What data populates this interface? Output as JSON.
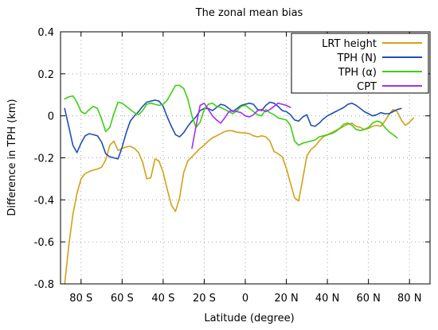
{
  "chart_data": {
    "type": "line",
    "title": "The zonal mean bias",
    "xlabel": "Latitude (degree)",
    "ylabel": "Difference in TPH (km)",
    "xlim": [
      -90,
      90
    ],
    "ylim": [
      -0.8,
      0.4
    ],
    "grid": true,
    "legend_position": "top-right",
    "x_ticks": [
      {
        "value": -80,
        "label": "80 S"
      },
      {
        "value": -60,
        "label": "60 S"
      },
      {
        "value": -40,
        "label": "40 S"
      },
      {
        "value": -20,
        "label": "20 S"
      },
      {
        "value": 0,
        "label": "0"
      },
      {
        "value": 20,
        "label": "20 N"
      },
      {
        "value": 40,
        "label": "40 N"
      },
      {
        "value": 60,
        "label": "60 N"
      },
      {
        "value": 80,
        "label": "80 N"
      }
    ],
    "y_ticks": [
      {
        "value": 0.4,
        "label": "0.4"
      },
      {
        "value": 0.2,
        "label": "0.2"
      },
      {
        "value": 0,
        "label": "0"
      },
      {
        "value": -0.2,
        "label": "-0.2"
      },
      {
        "value": -0.4,
        "label": "-0.4"
      },
      {
        "value": -0.6,
        "label": "-0.6"
      },
      {
        "value": -0.8,
        "label": "-0.8"
      }
    ],
    "series": [
      {
        "name": "LRT height",
        "color": "#d4a017",
        "points": [
          [
            -88,
            -0.8
          ],
          [
            -86,
            -0.62
          ],
          [
            -84,
            -0.47
          ],
          [
            -82,
            -0.37
          ],
          [
            -80,
            -0.3
          ],
          [
            -78,
            -0.275
          ],
          [
            -76,
            -0.265
          ],
          [
            -74,
            -0.258
          ],
          [
            -72,
            -0.253
          ],
          [
            -70,
            -0.245
          ],
          [
            -68,
            -0.21
          ],
          [
            -66,
            -0.14
          ],
          [
            -64,
            -0.12
          ],
          [
            -62,
            -0.165
          ],
          [
            -60,
            -0.155
          ],
          [
            -58,
            -0.148
          ],
          [
            -56,
            -0.145
          ],
          [
            -54,
            -0.155
          ],
          [
            -52,
            -0.175
          ],
          [
            -50,
            -0.22
          ],
          [
            -48,
            -0.3
          ],
          [
            -46,
            -0.295
          ],
          [
            -44,
            -0.205
          ],
          [
            -42,
            -0.215
          ],
          [
            -40,
            -0.27
          ],
          [
            -38,
            -0.35
          ],
          [
            -36,
            -0.425
          ],
          [
            -34,
            -0.455
          ],
          [
            -32,
            -0.39
          ],
          [
            -30,
            -0.27
          ],
          [
            -28,
            -0.215
          ],
          [
            -26,
            -0.195
          ],
          [
            -24,
            -0.175
          ],
          [
            -22,
            -0.155
          ],
          [
            -20,
            -0.14
          ],
          [
            -18,
            -0.12
          ],
          [
            -16,
            -0.105
          ],
          [
            -14,
            -0.095
          ],
          [
            -12,
            -0.085
          ],
          [
            -10,
            -0.075
          ],
          [
            -8,
            -0.07
          ],
          [
            -6,
            -0.072
          ],
          [
            -4,
            -0.078
          ],
          [
            -2,
            -0.08
          ],
          [
            0,
            -0.082
          ],
          [
            2,
            -0.085
          ],
          [
            4,
            -0.095
          ],
          [
            6,
            -0.1
          ],
          [
            8,
            -0.095
          ],
          [
            10,
            -0.1
          ],
          [
            12,
            -0.12
          ],
          [
            14,
            -0.17
          ],
          [
            16,
            -0.18
          ],
          [
            18,
            -0.195
          ],
          [
            20,
            -0.25
          ],
          [
            22,
            -0.32
          ],
          [
            24,
            -0.39
          ],
          [
            26,
            -0.405
          ],
          [
            28,
            -0.3
          ],
          [
            30,
            -0.19
          ],
          [
            32,
            -0.16
          ],
          [
            34,
            -0.145
          ],
          [
            36,
            -0.12
          ],
          [
            38,
            -0.1
          ],
          [
            40,
            -0.09
          ],
          [
            42,
            -0.08
          ],
          [
            44,
            -0.07
          ],
          [
            46,
            -0.06
          ],
          [
            48,
            -0.05
          ],
          [
            50,
            -0.04
          ],
          [
            52,
            -0.035
          ],
          [
            54,
            -0.05
          ],
          [
            56,
            -0.055
          ],
          [
            58,
            -0.065
          ],
          [
            60,
            -0.06
          ],
          [
            62,
            -0.05
          ],
          [
            64,
            -0.045
          ],
          [
            66,
            -0.05
          ],
          [
            68,
            -0.025
          ],
          [
            70,
            0.005
          ],
          [
            72,
            0.03
          ],
          [
            74,
            0.02
          ],
          [
            76,
            -0.02
          ],
          [
            78,
            -0.045
          ],
          [
            80,
            -0.03
          ],
          [
            82,
            -0.01
          ]
        ]
      },
      {
        "name": "TPH (N)",
        "color": "#1f4fb4",
        "points": [
          [
            -88,
            0.035
          ],
          [
            -86,
            -0.05
          ],
          [
            -84,
            -0.14
          ],
          [
            -82,
            -0.175
          ],
          [
            -80,
            -0.13
          ],
          [
            -78,
            -0.095
          ],
          [
            -76,
            -0.085
          ],
          [
            -74,
            -0.09
          ],
          [
            -72,
            -0.095
          ],
          [
            -70,
            -0.125
          ],
          [
            -68,
            -0.18
          ],
          [
            -66,
            -0.195
          ],
          [
            -64,
            -0.2
          ],
          [
            -62,
            -0.205
          ],
          [
            -60,
            -0.15
          ],
          [
            -58,
            -0.08
          ],
          [
            -56,
            -0.025
          ],
          [
            -54,
            0.0
          ],
          [
            -52,
            0.02
          ],
          [
            -50,
            0.045
          ],
          [
            -48,
            0.065
          ],
          [
            -46,
            0.07
          ],
          [
            -44,
            0.075
          ],
          [
            -42,
            0.07
          ],
          [
            -40,
            0.045
          ],
          [
            -38,
            -0.005
          ],
          [
            -36,
            -0.05
          ],
          [
            -34,
            -0.09
          ],
          [
            -32,
            -0.1
          ],
          [
            -30,
            -0.08
          ],
          [
            -28,
            -0.05
          ],
          [
            -26,
            -0.025
          ],
          [
            -24,
            -0.005
          ],
          [
            -22,
            0.025
          ],
          [
            -20,
            0.035
          ],
          [
            -18,
            0.035
          ],
          [
            -16,
            0.025
          ],
          [
            -14,
            0.04
          ],
          [
            -12,
            0.055
          ],
          [
            -10,
            0.05
          ],
          [
            -8,
            0.035
          ],
          [
            -6,
            0.02
          ],
          [
            -4,
            0.035
          ],
          [
            -2,
            0.05
          ],
          [
            0,
            0.055
          ],
          [
            2,
            0.06
          ],
          [
            4,
            0.055
          ],
          [
            6,
            0.03
          ],
          [
            8,
            0.025
          ],
          [
            10,
            0.05
          ],
          [
            12,
            0.065
          ],
          [
            14,
            0.06
          ],
          [
            16,
            0.045
          ],
          [
            18,
            0.025
          ],
          [
            20,
            0.02
          ],
          [
            22,
            0.005
          ],
          [
            24,
            -0.02
          ],
          [
            26,
            -0.025
          ],
          [
            28,
            -0.005
          ],
          [
            30,
            0.005
          ],
          [
            32,
            -0.045
          ],
          [
            34,
            -0.05
          ],
          [
            36,
            -0.035
          ],
          [
            38,
            -0.015
          ],
          [
            40,
            0.0
          ],
          [
            42,
            0.01
          ],
          [
            44,
            0.02
          ],
          [
            46,
            0.03
          ],
          [
            48,
            0.04
          ],
          [
            50,
            0.055
          ],
          [
            52,
            0.06
          ],
          [
            54,
            0.05
          ],
          [
            56,
            0.035
          ],
          [
            58,
            0.02
          ],
          [
            60,
            0.01
          ],
          [
            62,
            0.0
          ],
          [
            64,
            0.005
          ],
          [
            66,
            0.015
          ],
          [
            68,
            0.01
          ],
          [
            70,
            0.01
          ],
          [
            72,
            0.02
          ],
          [
            74,
            0.03
          ],
          [
            76,
            0.035
          ]
        ]
      },
      {
        "name": "TPH (α)",
        "color": "#3ccf12",
        "points": [
          [
            -88,
            0.08
          ],
          [
            -86,
            0.09
          ],
          [
            -84,
            0.095
          ],
          [
            -82,
            0.065
          ],
          [
            -80,
            0.02
          ],
          [
            -78,
            0.01
          ],
          [
            -76,
            0.03
          ],
          [
            -74,
            0.045
          ],
          [
            -72,
            0.035
          ],
          [
            -70,
            -0.015
          ],
          [
            -68,
            -0.075
          ],
          [
            -66,
            -0.055
          ],
          [
            -64,
            0.01
          ],
          [
            -62,
            0.065
          ],
          [
            -60,
            0.06
          ],
          [
            -58,
            0.045
          ],
          [
            -56,
            0.03
          ],
          [
            -54,
            0.015
          ],
          [
            -52,
            0.005
          ],
          [
            -50,
            0.025
          ],
          [
            -48,
            0.055
          ],
          [
            -46,
            0.06
          ],
          [
            -44,
            0.055
          ],
          [
            -42,
            0.05
          ],
          [
            -40,
            0.055
          ],
          [
            -38,
            0.075
          ],
          [
            -36,
            0.11
          ],
          [
            -34,
            0.145
          ],
          [
            -32,
            0.145
          ],
          [
            -30,
            0.13
          ],
          [
            -28,
            0.08
          ],
          [
            -26,
            0.0
          ],
          [
            -24,
            -0.055
          ],
          [
            -22,
            -0.03
          ],
          [
            -20,
            0.03
          ],
          [
            -18,
            0.055
          ],
          [
            -16,
            0.06
          ],
          [
            -14,
            0.045
          ],
          [
            -12,
            0.04
          ],
          [
            -10,
            0.03
          ],
          [
            -8,
            0.02
          ],
          [
            -6,
            0.01
          ],
          [
            -4,
            0.025
          ],
          [
            -2,
            0.045
          ],
          [
            0,
            0.05
          ],
          [
            2,
            0.035
          ],
          [
            4,
            0.02
          ],
          [
            6,
            0.005
          ],
          [
            8,
            0.0
          ],
          [
            10,
            0.03
          ],
          [
            12,
            0.015
          ],
          [
            14,
            0.005
          ],
          [
            16,
            -0.01
          ],
          [
            18,
            -0.015
          ],
          [
            20,
            -0.02
          ],
          [
            22,
            -0.045
          ],
          [
            24,
            -0.12
          ],
          [
            26,
            -0.14
          ],
          [
            28,
            -0.13
          ],
          [
            30,
            -0.125
          ],
          [
            32,
            -0.12
          ],
          [
            34,
            -0.115
          ],
          [
            36,
            -0.1
          ],
          [
            38,
            -0.095
          ],
          [
            40,
            -0.09
          ],
          [
            42,
            -0.085
          ],
          [
            44,
            -0.075
          ],
          [
            46,
            -0.06
          ],
          [
            48,
            -0.04
          ],
          [
            50,
            -0.035
          ],
          [
            52,
            -0.045
          ],
          [
            54,
            -0.065
          ],
          [
            56,
            -0.07
          ],
          [
            58,
            -0.065
          ],
          [
            60,
            -0.055
          ],
          [
            62,
            -0.035
          ],
          [
            64,
            -0.025
          ],
          [
            66,
            -0.03
          ],
          [
            68,
            -0.055
          ],
          [
            70,
            -0.075
          ],
          [
            72,
            -0.09
          ],
          [
            74,
            -0.105
          ]
        ]
      },
      {
        "name": "CPT",
        "color": "#a52ff0",
        "points": [
          [
            -26,
            -0.155
          ],
          [
            -24,
            -0.05
          ],
          [
            -22,
            0.05
          ],
          [
            -20,
            0.06
          ],
          [
            -18,
            0.03
          ],
          [
            -16,
            0.0
          ],
          [
            -14,
            -0.02
          ],
          [
            -12,
            -0.035
          ],
          [
            -10,
            -0.01
          ],
          [
            -8,
            0.02
          ],
          [
            -6,
            0.025
          ],
          [
            -4,
            0.02
          ],
          [
            -2,
            0.015
          ],
          [
            0,
            0.0
          ],
          [
            2,
            -0.005
          ],
          [
            4,
            0.005
          ],
          [
            6,
            0.025
          ],
          [
            8,
            0.03
          ],
          [
            10,
            0.02
          ],
          [
            12,
            0.03
          ],
          [
            14,
            0.045
          ],
          [
            16,
            0.06
          ],
          [
            18,
            0.055
          ],
          [
            20,
            0.05
          ],
          [
            22,
            0.04
          ]
        ]
      }
    ]
  }
}
